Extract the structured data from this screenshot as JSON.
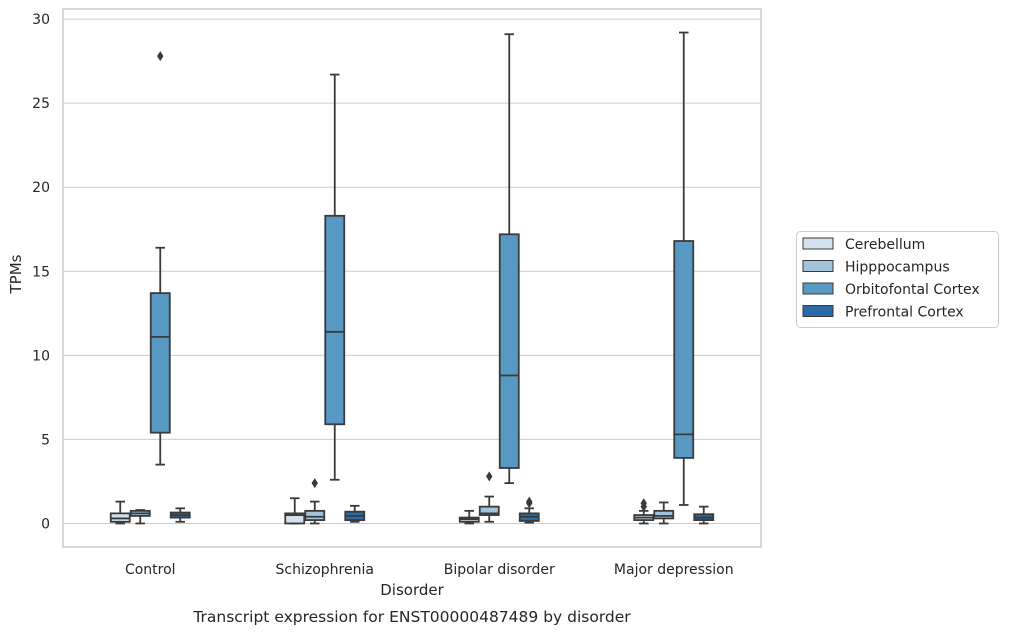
{
  "caption": "Transcript expression for ENST00000487489 by disorder",
  "chart_data": {
    "type": "box",
    "title": "",
    "xlabel": "Disorder",
    "ylabel": "TPMs",
    "ylim": [
      -1.4,
      30.6
    ],
    "yticks": [
      0,
      5,
      10,
      15,
      20,
      25,
      30
    ],
    "grid": "horizontal",
    "legend_position": "right",
    "categories": [
      "Control",
      "Schizophrenia",
      "Bipolar disorder",
      "Major depression"
    ],
    "series": [
      {
        "name": "Cerebellum",
        "color": "#d4e2ef",
        "boxes": [
          {
            "whisker_low": 0.0,
            "q1": 0.1,
            "median": 0.3,
            "q3": 0.6,
            "whisker_high": 1.3,
            "outliers": []
          },
          {
            "whisker_low": 0.0,
            "q1": 0.0,
            "median": 0.5,
            "q3": 0.6,
            "whisker_high": 1.5,
            "outliers": []
          },
          {
            "whisker_low": 0.0,
            "q1": 0.1,
            "median": 0.25,
            "q3": 0.35,
            "whisker_high": 0.75,
            "outliers": []
          },
          {
            "whisker_low": 0.0,
            "q1": 0.2,
            "median": 0.35,
            "q3": 0.5,
            "whisker_high": 0.75,
            "outliers": [
              1.0,
              1.2
            ]
          }
        ]
      },
      {
        "name": "Hipppocampus",
        "color": "#a2c4dd",
        "boxes": [
          {
            "whisker_low": 0.0,
            "q1": 0.45,
            "median": 0.6,
            "q3": 0.75,
            "whisker_high": 0.8,
            "outliers": []
          },
          {
            "whisker_low": 0.0,
            "q1": 0.2,
            "median": 0.4,
            "q3": 0.75,
            "whisker_high": 1.3,
            "outliers": [
              2.4
            ]
          },
          {
            "whisker_low": 0.1,
            "q1": 0.5,
            "median": 0.6,
            "q3": 1.0,
            "whisker_high": 1.6,
            "outliers": [
              2.8
            ]
          },
          {
            "whisker_low": 0.0,
            "q1": 0.3,
            "median": 0.45,
            "q3": 0.75,
            "whisker_high": 1.25,
            "outliers": []
          }
        ]
      },
      {
        "name": "Orbitofontal Cortex",
        "color": "#5899c4",
        "boxes": [
          {
            "whisker_low": 3.5,
            "q1": 5.4,
            "median": 11.1,
            "q3": 13.7,
            "whisker_high": 16.4,
            "outliers": [
              27.8
            ]
          },
          {
            "whisker_low": 2.6,
            "q1": 5.9,
            "median": 11.4,
            "q3": 18.3,
            "whisker_high": 26.7,
            "outliers": []
          },
          {
            "whisker_low": 2.4,
            "q1": 3.3,
            "median": 8.8,
            "q3": 17.2,
            "whisker_high": 29.1,
            "outliers": []
          },
          {
            "whisker_low": 1.1,
            "q1": 3.9,
            "median": 5.3,
            "q3": 16.8,
            "whisker_high": 29.2,
            "outliers": []
          }
        ]
      },
      {
        "name": "Prefrontal Cortex",
        "color": "#2b6aa6",
        "boxes": [
          {
            "whisker_low": 0.1,
            "q1": 0.35,
            "median": 0.5,
            "q3": 0.65,
            "whisker_high": 0.9,
            "outliers": []
          },
          {
            "whisker_low": 0.1,
            "q1": 0.2,
            "median": 0.45,
            "q3": 0.7,
            "whisker_high": 1.05,
            "outliers": []
          },
          {
            "whisker_low": 0.05,
            "q1": 0.15,
            "median": 0.4,
            "q3": 0.6,
            "whisker_high": 0.9,
            "outliers": [
              1.2,
              1.3
            ]
          },
          {
            "whisker_low": 0.0,
            "q1": 0.2,
            "median": 0.35,
            "q3": 0.55,
            "whisker_high": 1.0,
            "outliers": []
          }
        ]
      }
    ]
  }
}
